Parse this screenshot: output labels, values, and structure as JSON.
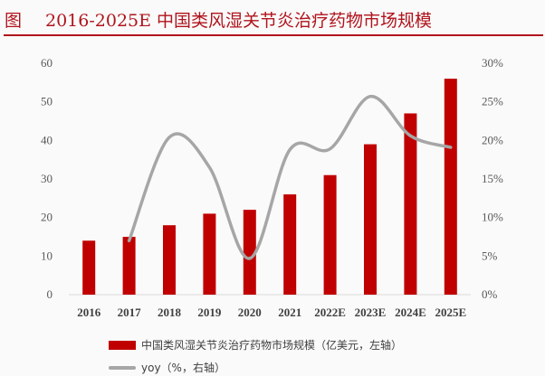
{
  "header": {
    "fig_label": "图",
    "title": "2016-2025E 中国类风湿关节炎治疗药物市场规模"
  },
  "colors": {
    "bar": "#c00000",
    "line": "#a6a6a6",
    "accent": "#b0141c"
  },
  "chart_data": {
    "type": "bar+line",
    "categories": [
      "2016",
      "2017",
      "2018",
      "2019",
      "2020",
      "2021",
      "2022E",
      "2023E",
      "2024E",
      "2025E"
    ],
    "series": [
      {
        "name": "中国类风湿关节炎治疗药物市场规模（亿美元，左轴）",
        "type": "bar",
        "axis": "left",
        "values": [
          14,
          15,
          18,
          21,
          22,
          26,
          31,
          39,
          47,
          56
        ]
      },
      {
        "name": "yoy（%，右轴）",
        "type": "line",
        "axis": "right",
        "values": [
          null,
          7,
          20.4,
          16.5,
          4.7,
          18.8,
          18.9,
          25.7,
          20.6,
          19.1
        ]
      }
    ],
    "left_axis": {
      "ylim": [
        0,
        60
      ],
      "ticks": [
        "0",
        "10",
        "20",
        "30",
        "40",
        "50",
        "60"
      ]
    },
    "right_axis": {
      "ylim": [
        0,
        30
      ],
      "ticks": [
        "0%",
        "5%",
        "10%",
        "15%",
        "20%",
        "25%",
        "30%"
      ]
    },
    "grid": false,
    "legend": "bottom"
  }
}
